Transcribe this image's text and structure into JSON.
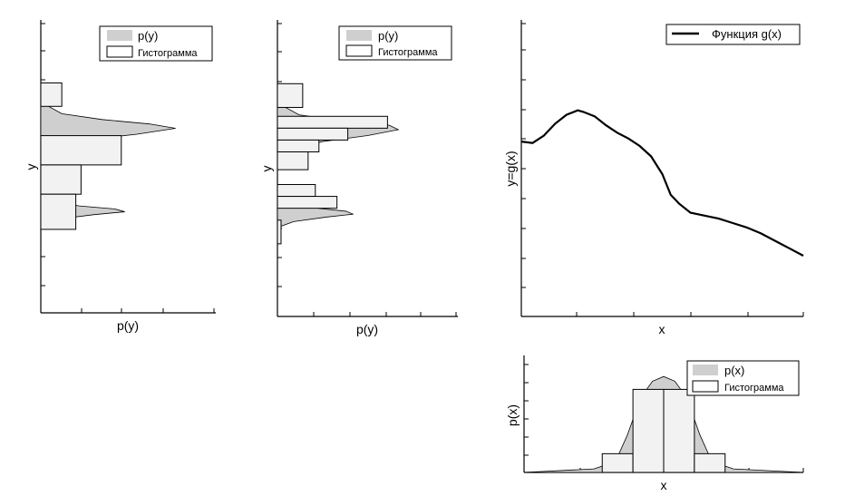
{
  "chart_data": [
    {
      "id": "py-left",
      "type": "bar",
      "orientation": "horizontal",
      "xlabel": "p(y)",
      "ylabel": "y",
      "xlim": [
        0,
        1
      ],
      "ylim": [
        0,
        1
      ],
      "grid": false,
      "legend": {
        "position": "top-right",
        "entries": [
          "p(y)",
          "Гистограмма"
        ]
      },
      "bins": [
        {
          "lo": 0.705,
          "hi": 0.785,
          "value": 0.12
        },
        {
          "lo": 0.505,
          "hi": 0.605,
          "value": 0.46
        },
        {
          "lo": 0.405,
          "hi": 0.505,
          "value": 0.23
        },
        {
          "lo": 0.285,
          "hi": 0.405,
          "value": 0.2
        }
      ],
      "density": [
        [
          0.72,
          0.0
        ],
        [
          0.68,
          0.12
        ],
        [
          0.66,
          0.35
        ],
        [
          0.645,
          0.62
        ],
        [
          0.63,
          0.77
        ],
        [
          0.61,
          0.55
        ],
        [
          0.59,
          0.25
        ],
        [
          0.56,
          0.06
        ],
        [
          0.53,
          0.0
        ],
        [
          0.4,
          0.0
        ],
        [
          0.38,
          0.09
        ],
        [
          0.365,
          0.22
        ],
        [
          0.355,
          0.42
        ],
        [
          0.345,
          0.48
        ],
        [
          0.335,
          0.3
        ],
        [
          0.32,
          0.1
        ],
        [
          0.3,
          0.0
        ]
      ]
    },
    {
      "id": "py-middle",
      "type": "bar",
      "orientation": "horizontal",
      "xlabel": "p(y)",
      "ylabel": "y",
      "xlim": [
        0,
        1
      ],
      "ylim": [
        0,
        1
      ],
      "grid": false,
      "legend": {
        "position": "top-right",
        "entries": [
          "p(y)",
          "Гистограмма"
        ]
      },
      "bins": [
        {
          "lo": 0.705,
          "hi": 0.785,
          "value": 0.14
        },
        {
          "lo": 0.635,
          "hi": 0.675,
          "value": 0.61
        },
        {
          "lo": 0.595,
          "hi": 0.635,
          "value": 0.39
        },
        {
          "lo": 0.555,
          "hi": 0.595,
          "value": 0.23
        },
        {
          "lo": 0.495,
          "hi": 0.555,
          "value": 0.17
        },
        {
          "lo": 0.405,
          "hi": 0.445,
          "value": 0.21
        },
        {
          "lo": 0.365,
          "hi": 0.405,
          "value": 0.33
        },
        {
          "lo": 0.245,
          "hi": 0.325,
          "value": 0.02
        }
      ],
      "density": [
        [
          0.72,
          0.0
        ],
        [
          0.68,
          0.12
        ],
        [
          0.66,
          0.35
        ],
        [
          0.645,
          0.62
        ],
        [
          0.63,
          0.67
        ],
        [
          0.61,
          0.5
        ],
        [
          0.59,
          0.25
        ],
        [
          0.56,
          0.06
        ],
        [
          0.53,
          0.0
        ],
        [
          0.4,
          0.0
        ],
        [
          0.38,
          0.09
        ],
        [
          0.365,
          0.22
        ],
        [
          0.355,
          0.38
        ],
        [
          0.345,
          0.42
        ],
        [
          0.335,
          0.27
        ],
        [
          0.32,
          0.09
        ],
        [
          0.3,
          0.0
        ]
      ]
    },
    {
      "id": "gx",
      "type": "line",
      "xlabel": "x",
      "ylabel": "y=g(x)",
      "xlim": [
        0,
        1
      ],
      "ylim": [
        0,
        1
      ],
      "grid": false,
      "legend": {
        "position": "top-right",
        "entries": [
          "Функция  g(x)"
        ]
      },
      "series": [
        {
          "name": "Функция  g(x)",
          "x": [
            0.0,
            0.04,
            0.08,
            0.12,
            0.16,
            0.2,
            0.22,
            0.26,
            0.3,
            0.34,
            0.38,
            0.42,
            0.46,
            0.5,
            0.53,
            0.56,
            0.6,
            0.65,
            0.7,
            0.75,
            0.8,
            0.85,
            0.9,
            0.95,
            1.0
          ],
          "y": [
            0.59,
            0.585,
            0.61,
            0.65,
            0.68,
            0.695,
            0.69,
            0.675,
            0.645,
            0.62,
            0.6,
            0.575,
            0.54,
            0.48,
            0.41,
            0.38,
            0.35,
            0.34,
            0.33,
            0.315,
            0.3,
            0.28,
            0.255,
            0.23,
            0.205
          ]
        }
      ]
    },
    {
      "id": "px",
      "type": "bar",
      "xlabel": "x",
      "ylabel": "p(x)",
      "xlim": [
        0,
        1
      ],
      "ylim": [
        0,
        1
      ],
      "grid": false,
      "legend": {
        "position": "top-right",
        "entries": [
          "p(x)",
          "Гистограмма"
        ]
      },
      "bins": [
        {
          "lo": 0.28,
          "hi": 0.39,
          "value": 0.16
        },
        {
          "lo": 0.39,
          "hi": 0.5,
          "value": 0.71
        },
        {
          "lo": 0.5,
          "hi": 0.61,
          "value": 0.71
        },
        {
          "lo": 0.61,
          "hi": 0.72,
          "value": 0.16
        }
      ],
      "density": [
        [
          0.0,
          0.0
        ],
        [
          0.25,
          0.03
        ],
        [
          0.3,
          0.07
        ],
        [
          0.34,
          0.16
        ],
        [
          0.37,
          0.32
        ],
        [
          0.4,
          0.52
        ],
        [
          0.43,
          0.68
        ],
        [
          0.46,
          0.78
        ],
        [
          0.5,
          0.82
        ],
        [
          0.54,
          0.78
        ],
        [
          0.57,
          0.68
        ],
        [
          0.6,
          0.52
        ],
        [
          0.63,
          0.32
        ],
        [
          0.66,
          0.16
        ],
        [
          0.7,
          0.07
        ],
        [
          0.75,
          0.03
        ],
        [
          1.0,
          0.0
        ]
      ]
    }
  ]
}
